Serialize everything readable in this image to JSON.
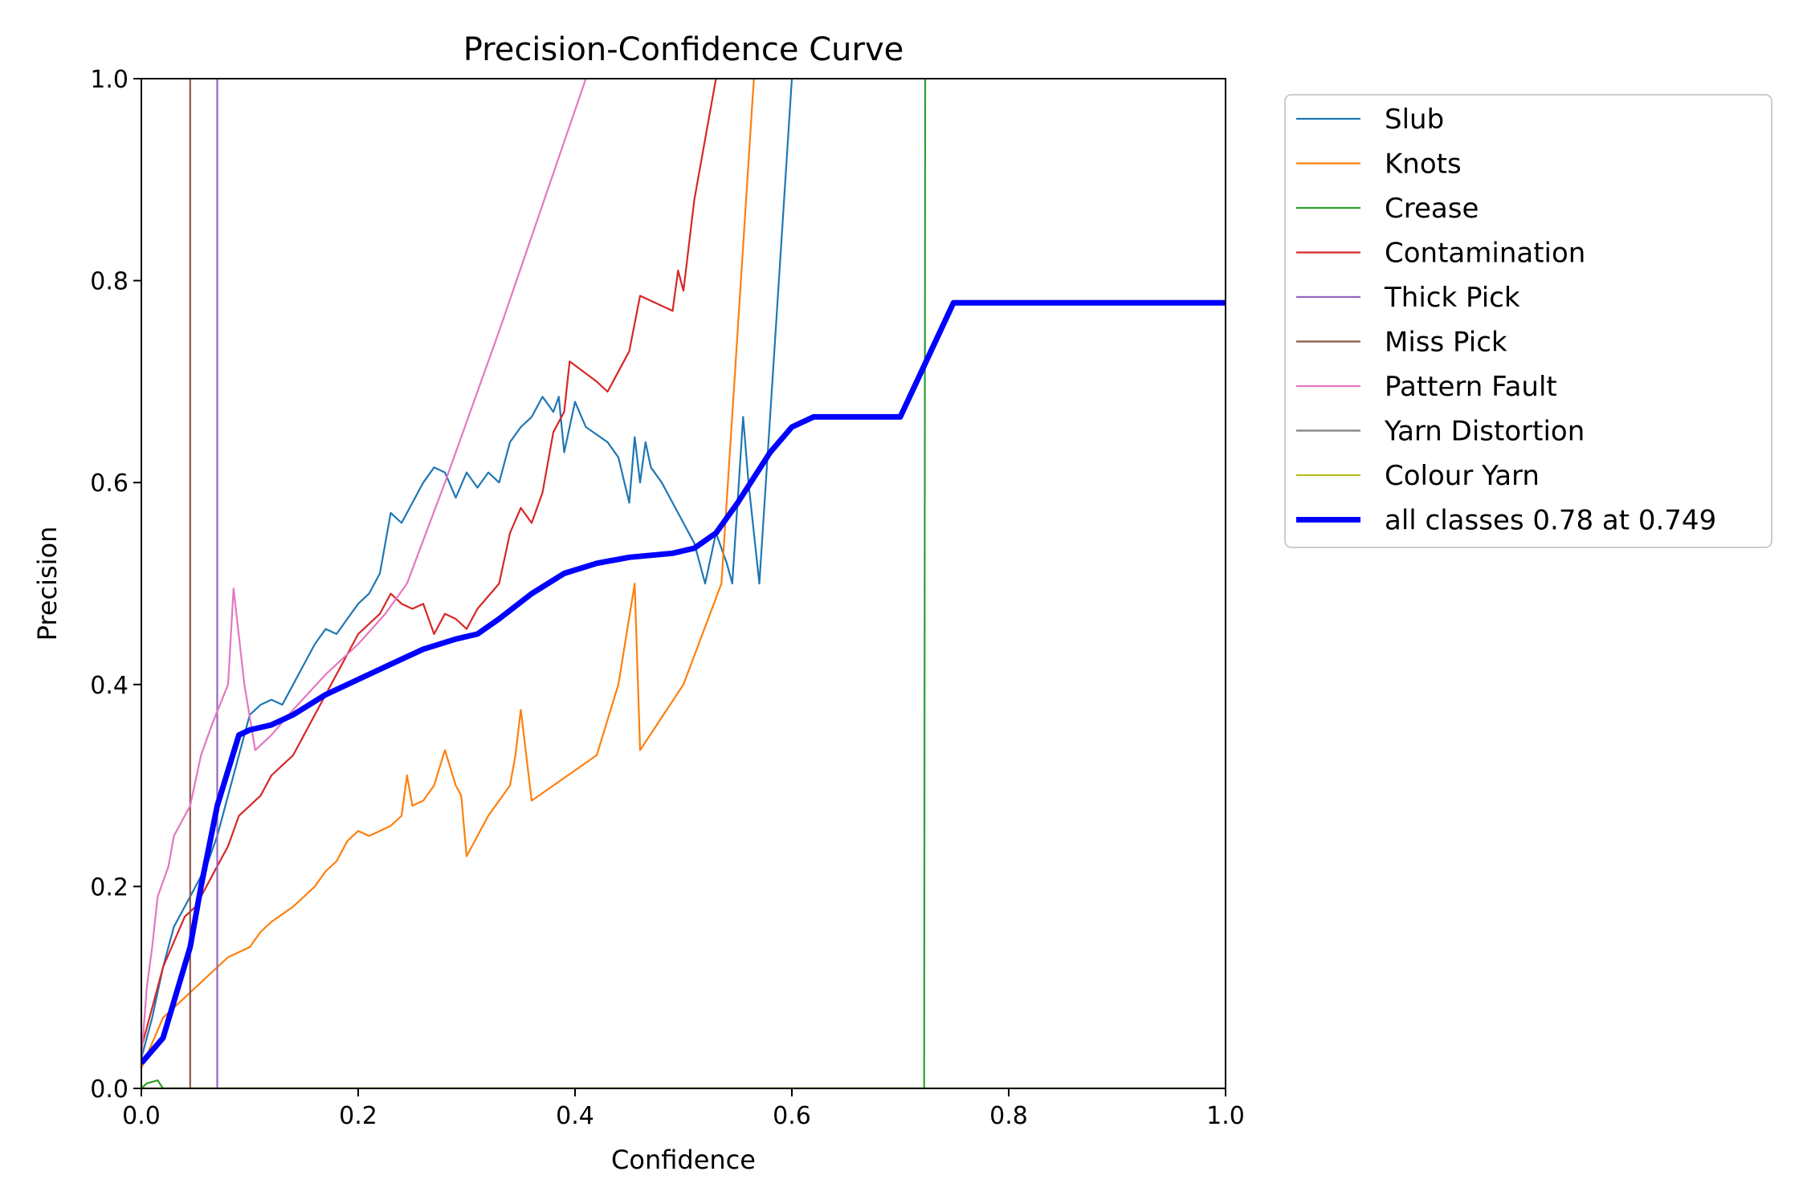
{
  "chart_data": {
    "type": "line",
    "title": "Precision-Confidence Curve",
    "xlabel": "Confidence",
    "ylabel": "Precision",
    "xlim": [
      0,
      1
    ],
    "ylim": [
      0,
      1
    ],
    "xticks": [
      "0.0",
      "0.2",
      "0.4",
      "0.6",
      "0.8",
      "1.0"
    ],
    "yticks": [
      "0.0",
      "0.2",
      "0.4",
      "0.6",
      "0.8",
      "1.0"
    ],
    "grid": false,
    "legend_position": "outside-upper-right",
    "series": [
      {
        "name": "Slub",
        "color": "#1f77b4",
        "width": "thin",
        "points": [
          [
            0.0,
            0.03
          ],
          [
            0.01,
            0.07
          ],
          [
            0.02,
            0.12
          ],
          [
            0.03,
            0.16
          ],
          [
            0.04,
            0.18
          ],
          [
            0.05,
            0.2
          ],
          [
            0.06,
            0.22
          ],
          [
            0.07,
            0.25
          ],
          [
            0.08,
            0.29
          ],
          [
            0.09,
            0.33
          ],
          [
            0.1,
            0.37
          ],
          [
            0.11,
            0.38
          ],
          [
            0.12,
            0.385
          ],
          [
            0.13,
            0.38
          ],
          [
            0.14,
            0.4
          ],
          [
            0.15,
            0.42
          ],
          [
            0.16,
            0.44
          ],
          [
            0.17,
            0.455
          ],
          [
            0.18,
            0.45
          ],
          [
            0.19,
            0.465
          ],
          [
            0.2,
            0.48
          ],
          [
            0.21,
            0.49
          ],
          [
            0.22,
            0.51
          ],
          [
            0.23,
            0.57
          ],
          [
            0.24,
            0.56
          ],
          [
            0.25,
            0.58
          ],
          [
            0.26,
            0.6
          ],
          [
            0.27,
            0.615
          ],
          [
            0.28,
            0.61
          ],
          [
            0.29,
            0.585
          ],
          [
            0.3,
            0.61
          ],
          [
            0.31,
            0.595
          ],
          [
            0.32,
            0.61
          ],
          [
            0.33,
            0.6
          ],
          [
            0.34,
            0.64
          ],
          [
            0.35,
            0.655
          ],
          [
            0.36,
            0.665
          ],
          [
            0.37,
            0.685
          ],
          [
            0.38,
            0.67
          ],
          [
            0.385,
            0.685
          ],
          [
            0.39,
            0.63
          ],
          [
            0.4,
            0.68
          ],
          [
            0.41,
            0.655
          ],
          [
            0.43,
            0.64
          ],
          [
            0.44,
            0.625
          ],
          [
            0.45,
            0.58
          ],
          [
            0.455,
            0.645
          ],
          [
            0.46,
            0.6
          ],
          [
            0.465,
            0.64
          ],
          [
            0.47,
            0.615
          ],
          [
            0.48,
            0.6
          ],
          [
            0.49,
            0.58
          ],
          [
            0.5,
            0.56
          ],
          [
            0.51,
            0.54
          ],
          [
            0.52,
            0.5
          ],
          [
            0.53,
            0.55
          ],
          [
            0.54,
            0.52
          ],
          [
            0.545,
            0.5
          ],
          [
            0.555,
            0.665
          ],
          [
            0.56,
            0.6
          ],
          [
            0.57,
            0.5
          ],
          [
            0.585,
            0.75
          ],
          [
            0.6,
            1.0
          ]
        ]
      },
      {
        "name": "Knots",
        "color": "#ff7f0e",
        "width": "thin",
        "points": [
          [
            0.0,
            0.02
          ],
          [
            0.02,
            0.07
          ],
          [
            0.04,
            0.09
          ],
          [
            0.06,
            0.11
          ],
          [
            0.08,
            0.13
          ],
          [
            0.1,
            0.14
          ],
          [
            0.11,
            0.155
          ],
          [
            0.12,
            0.165
          ],
          [
            0.14,
            0.18
          ],
          [
            0.15,
            0.19
          ],
          [
            0.16,
            0.2
          ],
          [
            0.17,
            0.215
          ],
          [
            0.18,
            0.225
          ],
          [
            0.19,
            0.245
          ],
          [
            0.2,
            0.255
          ],
          [
            0.21,
            0.25
          ],
          [
            0.23,
            0.26
          ],
          [
            0.24,
            0.27
          ],
          [
            0.245,
            0.31
          ],
          [
            0.25,
            0.28
          ],
          [
            0.26,
            0.285
          ],
          [
            0.27,
            0.3
          ],
          [
            0.28,
            0.335
          ],
          [
            0.29,
            0.3
          ],
          [
            0.295,
            0.29
          ],
          [
            0.3,
            0.23
          ],
          [
            0.31,
            0.25
          ],
          [
            0.32,
            0.27
          ],
          [
            0.33,
            0.285
          ],
          [
            0.34,
            0.3
          ],
          [
            0.345,
            0.33
          ],
          [
            0.35,
            0.375
          ],
          [
            0.36,
            0.285
          ],
          [
            0.42,
            0.33
          ],
          [
            0.44,
            0.4
          ],
          [
            0.455,
            0.5
          ],
          [
            0.46,
            0.335
          ],
          [
            0.5,
            0.4
          ],
          [
            0.535,
            0.5
          ],
          [
            0.55,
            0.75
          ],
          [
            0.565,
            1.0
          ]
        ]
      },
      {
        "name": "Crease",
        "color": "#2ca02c",
        "width": "thin",
        "points": [
          [
            0.0,
            0.0
          ],
          [
            0.005,
            0.005
          ],
          [
            0.015,
            0.008
          ],
          [
            0.02,
            0.0
          ],
          [
            0.722,
            0.0
          ],
          [
            0.723,
            1.0
          ]
        ]
      },
      {
        "name": "Contamination",
        "color": "#d62728",
        "width": "thin",
        "points": [
          [
            0.0,
            0.04
          ],
          [
            0.02,
            0.12
          ],
          [
            0.04,
            0.17
          ],
          [
            0.05,
            0.18
          ],
          [
            0.06,
            0.2
          ],
          [
            0.07,
            0.22
          ],
          [
            0.08,
            0.24
          ],
          [
            0.09,
            0.27
          ],
          [
            0.1,
            0.28
          ],
          [
            0.11,
            0.29
          ],
          [
            0.12,
            0.31
          ],
          [
            0.13,
            0.32
          ],
          [
            0.14,
            0.33
          ],
          [
            0.15,
            0.35
          ],
          [
            0.16,
            0.37
          ],
          [
            0.17,
            0.39
          ],
          [
            0.18,
            0.41
          ],
          [
            0.19,
            0.43
          ],
          [
            0.2,
            0.45
          ],
          [
            0.21,
            0.46
          ],
          [
            0.22,
            0.47
          ],
          [
            0.23,
            0.49
          ],
          [
            0.24,
            0.48
          ],
          [
            0.25,
            0.475
          ],
          [
            0.26,
            0.48
          ],
          [
            0.27,
            0.45
          ],
          [
            0.28,
            0.47
          ],
          [
            0.29,
            0.465
          ],
          [
            0.3,
            0.455
          ],
          [
            0.31,
            0.475
          ],
          [
            0.33,
            0.5
          ],
          [
            0.34,
            0.55
          ],
          [
            0.35,
            0.575
          ],
          [
            0.36,
            0.56
          ],
          [
            0.37,
            0.59
          ],
          [
            0.38,
            0.65
          ],
          [
            0.39,
            0.67
          ],
          [
            0.395,
            0.72
          ],
          [
            0.42,
            0.7
          ],
          [
            0.43,
            0.69
          ],
          [
            0.45,
            0.73
          ],
          [
            0.46,
            0.785
          ],
          [
            0.49,
            0.77
          ],
          [
            0.495,
            0.81
          ],
          [
            0.5,
            0.79
          ],
          [
            0.51,
            0.88
          ],
          [
            0.53,
            1.0
          ]
        ]
      },
      {
        "name": "Thick Pick",
        "color": "#9467bd",
        "width": "thin",
        "points": [
          [
            0.07,
            0.0
          ],
          [
            0.07,
            1.0
          ]
        ]
      },
      {
        "name": "Miss Pick",
        "color": "#8c564b",
        "width": "thin",
        "points": [
          [
            0.045,
            0.0
          ],
          [
            0.045,
            1.0
          ]
        ]
      },
      {
        "name": "Pattern Fault",
        "color": "#e377c2",
        "width": "thin",
        "points": [
          [
            0.0,
            0.03
          ],
          [
            0.005,
            0.1
          ],
          [
            0.01,
            0.14
          ],
          [
            0.015,
            0.19
          ],
          [
            0.025,
            0.22
          ],
          [
            0.03,
            0.25
          ],
          [
            0.045,
            0.28
          ],
          [
            0.055,
            0.33
          ],
          [
            0.065,
            0.36
          ],
          [
            0.08,
            0.4
          ],
          [
            0.085,
            0.495
          ],
          [
            0.095,
            0.4
          ],
          [
            0.105,
            0.335
          ],
          [
            0.12,
            0.35
          ],
          [
            0.14,
            0.375
          ],
          [
            0.17,
            0.41
          ],
          [
            0.2,
            0.44
          ],
          [
            0.225,
            0.47
          ],
          [
            0.245,
            0.5
          ],
          [
            0.28,
            0.6
          ],
          [
            0.33,
            0.75
          ],
          [
            0.41,
            1.0
          ]
        ]
      },
      {
        "name": "Yarn Distortion",
        "color": "#7f7f7f",
        "width": "thin",
        "points": [
          [
            0.0,
            0.0
          ],
          [
            1.0,
            0.0
          ]
        ]
      },
      {
        "name": "Colour Yarn",
        "color": "#bcbd22",
        "width": "thin",
        "points": [
          [
            0.0,
            0.0
          ],
          [
            1.0,
            0.0
          ]
        ]
      },
      {
        "name": "all classes 0.78 at 0.749",
        "color": "#0000ff",
        "width": "thick",
        "points": [
          [
            0.0,
            0.025
          ],
          [
            0.02,
            0.05
          ],
          [
            0.045,
            0.14
          ],
          [
            0.055,
            0.2
          ],
          [
            0.07,
            0.28
          ],
          [
            0.09,
            0.35
          ],
          [
            0.1,
            0.355
          ],
          [
            0.12,
            0.36
          ],
          [
            0.14,
            0.37
          ],
          [
            0.17,
            0.39
          ],
          [
            0.2,
            0.405
          ],
          [
            0.23,
            0.42
          ],
          [
            0.26,
            0.435
          ],
          [
            0.29,
            0.445
          ],
          [
            0.31,
            0.45
          ],
          [
            0.33,
            0.465
          ],
          [
            0.36,
            0.49
          ],
          [
            0.39,
            0.51
          ],
          [
            0.42,
            0.52
          ],
          [
            0.45,
            0.526
          ],
          [
            0.47,
            0.528
          ],
          [
            0.49,
            0.53
          ],
          [
            0.51,
            0.535
          ],
          [
            0.53,
            0.55
          ],
          [
            0.55,
            0.58
          ],
          [
            0.58,
            0.63
          ],
          [
            0.6,
            0.655
          ],
          [
            0.62,
            0.665
          ],
          [
            0.7,
            0.665
          ],
          [
            0.749,
            0.778
          ],
          [
            1.0,
            0.778
          ]
        ]
      }
    ]
  }
}
